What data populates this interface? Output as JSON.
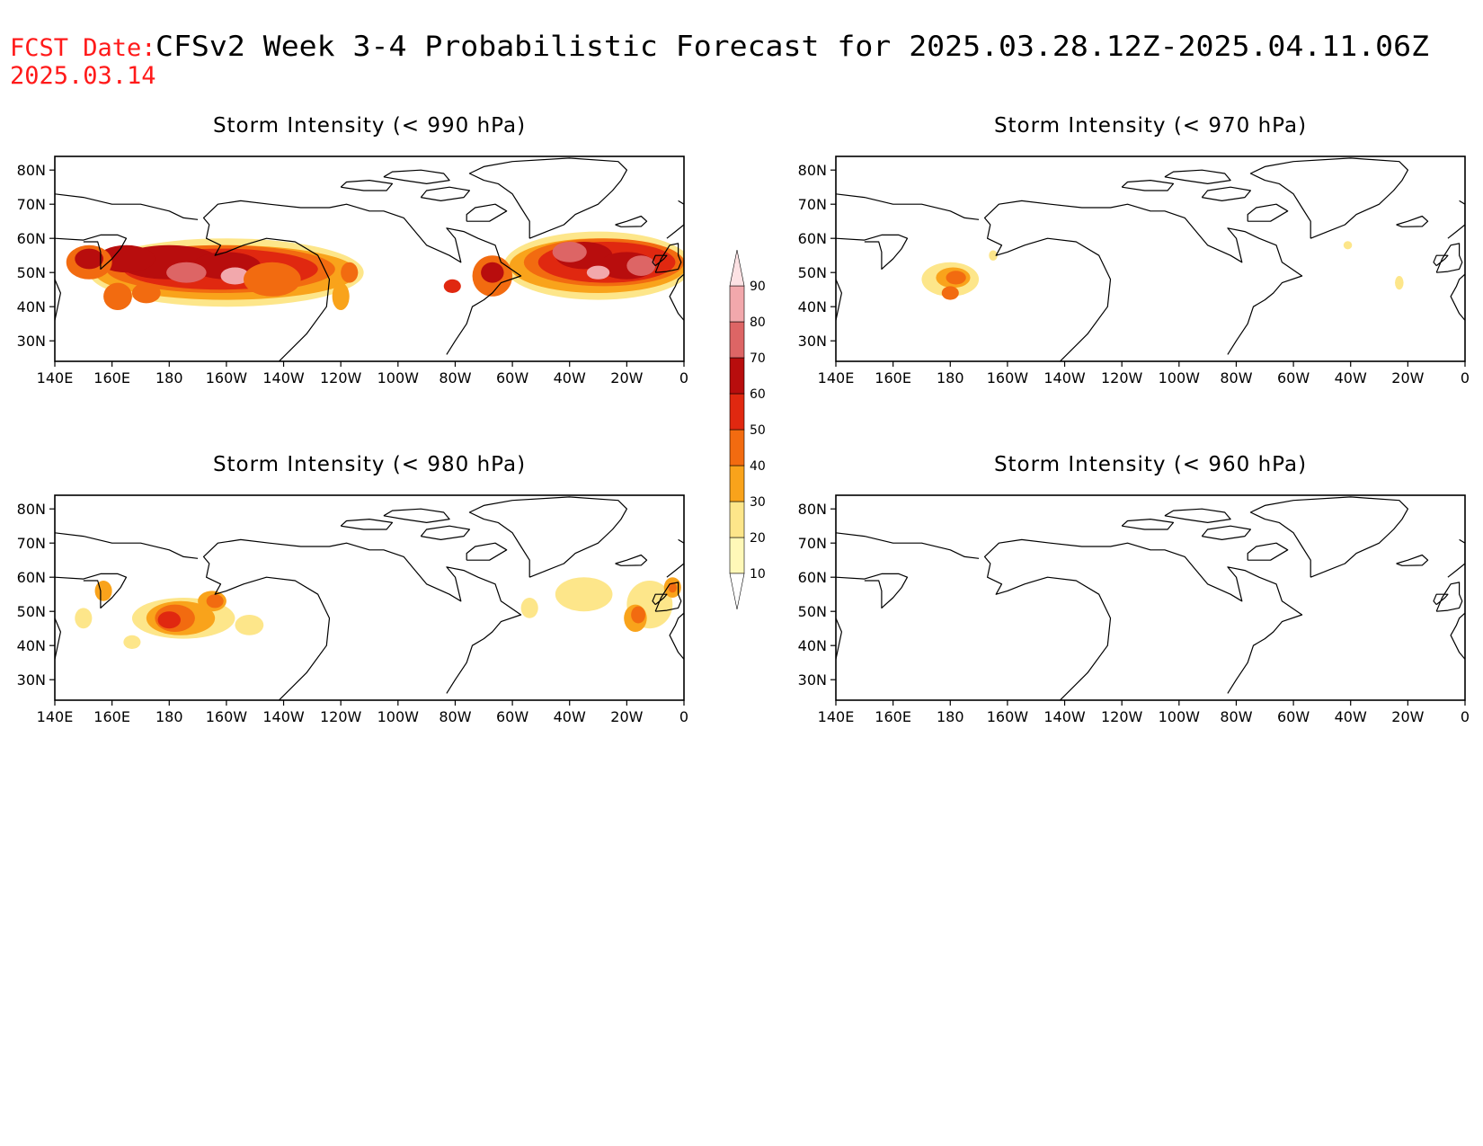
{
  "header": {
    "fcst_label": "FCST Date:",
    "fcst_date": "2025.03.14",
    "title": "CFSv2 Week 3-4 Probabilistic Forecast for 2025.03.28.12Z-2025.04.11.06Z"
  },
  "axes": {
    "lon_ticks": [
      "140E",
      "160E",
      "180",
      "160W",
      "140W",
      "120W",
      "100W",
      "80W",
      "60W",
      "40W",
      "20W",
      "0"
    ],
    "lat_ticks": [
      "80N",
      "70N",
      "60N",
      "50N",
      "40N",
      "30N"
    ]
  },
  "colorbar": {
    "levels": [
      "10",
      "20",
      "30",
      "40",
      "50",
      "60",
      "70",
      "80",
      "90"
    ],
    "colors": [
      "#fff8b8",
      "#fde68a",
      "#f9a31b",
      "#f26b10",
      "#e02810",
      "#b80d0d",
      "#dd6565",
      "#f2a8ac",
      "#fde2e4"
    ]
  },
  "panels": [
    {
      "id": "p990",
      "title": "Storm Intensity (< 990 hPa)"
    },
    {
      "id": "p970",
      "title": "Storm Intensity (< 970 hPa)"
    },
    {
      "id": "p980",
      "title": "Storm Intensity (< 980 hPa)"
    },
    {
      "id": "p960",
      "title": "Storm Intensity (< 960 hPa)"
    }
  ]
}
